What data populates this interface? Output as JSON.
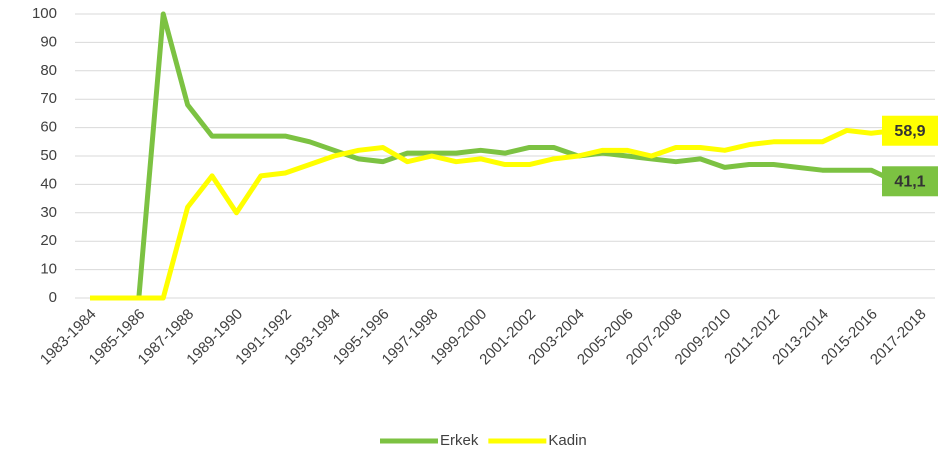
{
  "chart_data": {
    "type": "line",
    "categories": [
      "1983-1984",
      null,
      "1985-1986",
      null,
      "1987-1988",
      null,
      "1989-1990",
      null,
      "1991-1992",
      null,
      "1993-1994",
      null,
      "1995-1996",
      null,
      "1997-1998",
      null,
      "1999-2000",
      null,
      "2001-2002",
      null,
      "2003-2004",
      null,
      "2005-2006",
      null,
      "2007-2008",
      null,
      "2009-2010",
      null,
      "2011-2012",
      null,
      "2013-2014",
      null,
      "2015-2016",
      null,
      "2017-2018"
    ],
    "series": [
      {
        "name": "Erkek",
        "color": "#7cc242",
        "values": [
          0,
          0,
          0,
          100,
          68,
          57,
          57,
          57,
          57,
          55,
          52,
          49,
          48,
          51,
          51,
          51,
          52,
          51,
          53,
          53,
          50,
          51,
          50,
          49,
          48,
          49,
          46,
          47,
          47,
          46,
          45,
          45,
          45,
          41,
          41.1
        ],
        "value_labels": [
          null,
          null,
          null,
          null,
          null,
          null,
          null,
          null,
          null,
          null,
          null,
          null,
          null,
          null,
          null,
          null,
          null,
          null,
          null,
          null,
          null,
          null,
          null,
          null,
          null,
          null,
          null,
          null,
          null,
          null,
          null,
          null,
          null,
          null,
          "41,1"
        ]
      },
      {
        "name": "Kadin",
        "color": "#ffff00",
        "values": [
          0,
          0,
          0,
          0,
          32,
          43,
          30,
          43,
          44,
          47,
          50,
          52,
          53,
          48,
          50,
          48,
          49,
          47,
          47,
          49,
          50,
          52,
          52,
          50,
          53,
          53,
          52,
          54,
          55,
          55,
          55,
          59,
          58,
          59,
          58.9
        ],
        "value_labels": [
          null,
          null,
          null,
          null,
          null,
          null,
          null,
          null,
          null,
          null,
          null,
          null,
          null,
          null,
          null,
          null,
          null,
          null,
          null,
          null,
          null,
          null,
          null,
          null,
          null,
          null,
          null,
          null,
          null,
          null,
          null,
          null,
          null,
          null,
          "58,9"
        ]
      }
    ],
    "ylim": [
      0,
      100
    ],
    "yticks": [
      0,
      10,
      20,
      30,
      40,
      50,
      60,
      70,
      80,
      90,
      100
    ],
    "grid": true,
    "legend": "bottom"
  }
}
